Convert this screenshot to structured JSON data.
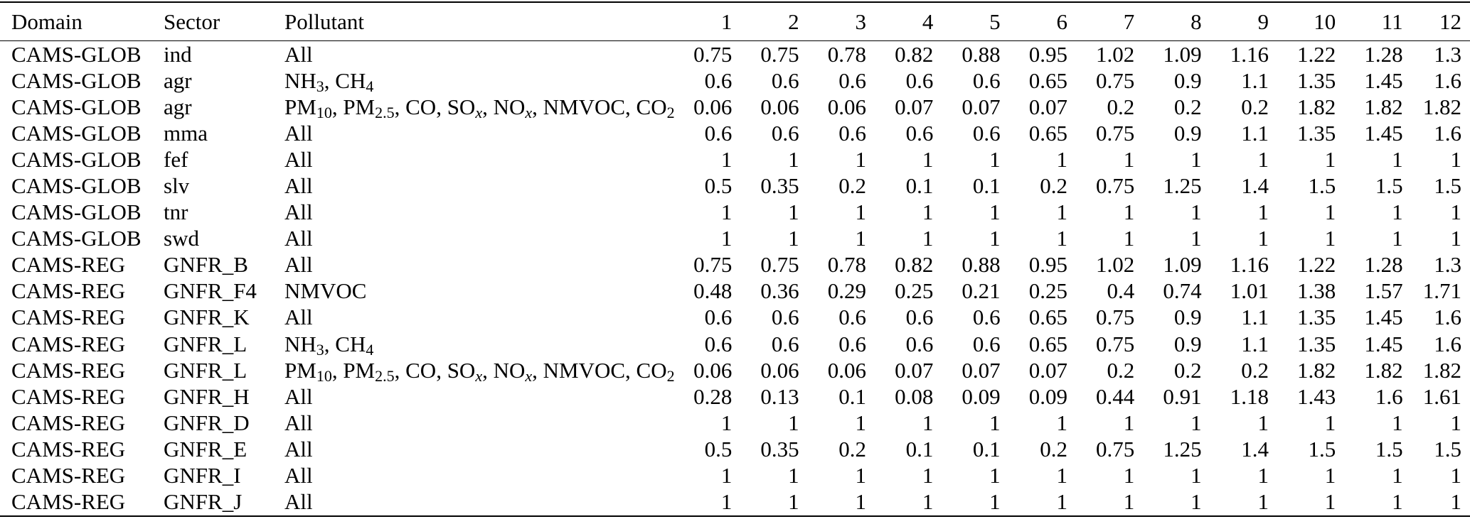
{
  "header": {
    "domain": "Domain",
    "sector": "Sector",
    "pollutant": "Pollutant",
    "months": [
      "1",
      "2",
      "3",
      "4",
      "5",
      "6",
      "7",
      "8",
      "9",
      "10",
      "11",
      "12"
    ]
  },
  "rows": [
    {
      "domain": "CAMS-GLOB",
      "sector": "ind",
      "pollutant": [
        {
          "t": "All"
        }
      ],
      "values": [
        "0.75",
        "0.75",
        "0.78",
        "0.82",
        "0.88",
        "0.95",
        "1.02",
        "1.09",
        "1.16",
        "1.22",
        "1.28",
        "1.3"
      ]
    },
    {
      "domain": "CAMS-GLOB",
      "sector": "agr",
      "pollutant": [
        {
          "t": "NH"
        },
        {
          "s": "3"
        },
        {
          "t": ", CH"
        },
        {
          "s": "4"
        }
      ],
      "values": [
        "0.6",
        "0.6",
        "0.6",
        "0.6",
        "0.6",
        "0.65",
        "0.75",
        "0.9",
        "1.1",
        "1.35",
        "1.45",
        "1.6"
      ]
    },
    {
      "domain": "CAMS-GLOB",
      "sector": "agr",
      "pollutant": [
        {
          "t": "PM"
        },
        {
          "s": "10"
        },
        {
          "t": ", PM"
        },
        {
          "s": "2.5"
        },
        {
          "t": ", CO, SO"
        },
        {
          "s": "x",
          "i": true
        },
        {
          "t": ", NO"
        },
        {
          "s": "x",
          "i": true
        },
        {
          "t": ", NMVOC, CO"
        },
        {
          "s": "2"
        }
      ],
      "values": [
        "0.06",
        "0.06",
        "0.06",
        "0.07",
        "0.07",
        "0.07",
        "0.2",
        "0.2",
        "0.2",
        "1.82",
        "1.82",
        "1.82"
      ]
    },
    {
      "domain": "CAMS-GLOB",
      "sector": "mma",
      "pollutant": [
        {
          "t": "All"
        }
      ],
      "values": [
        "0.6",
        "0.6",
        "0.6",
        "0.6",
        "0.6",
        "0.65",
        "0.75",
        "0.9",
        "1.1",
        "1.35",
        "1.45",
        "1.6"
      ]
    },
    {
      "domain": "CAMS-GLOB",
      "sector": "fef",
      "pollutant": [
        {
          "t": "All"
        }
      ],
      "values": [
        "1",
        "1",
        "1",
        "1",
        "1",
        "1",
        "1",
        "1",
        "1",
        "1",
        "1",
        "1"
      ]
    },
    {
      "domain": "CAMS-GLOB",
      "sector": "slv",
      "pollutant": [
        {
          "t": "All"
        }
      ],
      "values": [
        "0.5",
        "0.35",
        "0.2",
        "0.1",
        "0.1",
        "0.2",
        "0.75",
        "1.25",
        "1.4",
        "1.5",
        "1.5",
        "1.5"
      ]
    },
    {
      "domain": "CAMS-GLOB",
      "sector": "tnr",
      "pollutant": [
        {
          "t": "All"
        }
      ],
      "values": [
        "1",
        "1",
        "1",
        "1",
        "1",
        "1",
        "1",
        "1",
        "1",
        "1",
        "1",
        "1"
      ]
    },
    {
      "domain": "CAMS-GLOB",
      "sector": "swd",
      "pollutant": [
        {
          "t": "All"
        }
      ],
      "values": [
        "1",
        "1",
        "1",
        "1",
        "1",
        "1",
        "1",
        "1",
        "1",
        "1",
        "1",
        "1"
      ]
    },
    {
      "domain": "CAMS-REG",
      "sector": "GNFR_B",
      "pollutant": [
        {
          "t": "All"
        }
      ],
      "values": [
        "0.75",
        "0.75",
        "0.78",
        "0.82",
        "0.88",
        "0.95",
        "1.02",
        "1.09",
        "1.16",
        "1.22",
        "1.28",
        "1.3"
      ]
    },
    {
      "domain": "CAMS-REG",
      "sector": "GNFR_F4",
      "pollutant": [
        {
          "t": "NMVOC"
        }
      ],
      "values": [
        "0.48",
        "0.36",
        "0.29",
        "0.25",
        "0.21",
        "0.25",
        "0.4",
        "0.74",
        "1.01",
        "1.38",
        "1.57",
        "1.71"
      ]
    },
    {
      "domain": "CAMS-REG",
      "sector": "GNFR_K",
      "pollutant": [
        {
          "t": "All"
        }
      ],
      "values": [
        "0.6",
        "0.6",
        "0.6",
        "0.6",
        "0.6",
        "0.65",
        "0.75",
        "0.9",
        "1.1",
        "1.35",
        "1.45",
        "1.6"
      ]
    },
    {
      "domain": "CAMS-REG",
      "sector": "GNFR_L",
      "pollutant": [
        {
          "t": "NH"
        },
        {
          "s": "3"
        },
        {
          "t": ", CH"
        },
        {
          "s": "4"
        }
      ],
      "values": [
        "0.6",
        "0.6",
        "0.6",
        "0.6",
        "0.6",
        "0.65",
        "0.75",
        "0.9",
        "1.1",
        "1.35",
        "1.45",
        "1.6"
      ]
    },
    {
      "domain": "CAMS-REG",
      "sector": "GNFR_L",
      "pollutant": [
        {
          "t": "PM"
        },
        {
          "s": "10"
        },
        {
          "t": ", PM"
        },
        {
          "s": "2.5"
        },
        {
          "t": ", CO, SO"
        },
        {
          "s": "x",
          "i": true
        },
        {
          "t": ", NO"
        },
        {
          "s": "x",
          "i": true
        },
        {
          "t": ", NMVOC, CO"
        },
        {
          "s": "2"
        }
      ],
      "values": [
        "0.06",
        "0.06",
        "0.06",
        "0.07",
        "0.07",
        "0.07",
        "0.2",
        "0.2",
        "0.2",
        "1.82",
        "1.82",
        "1.82"
      ]
    },
    {
      "domain": "CAMS-REG",
      "sector": "GNFR_H",
      "pollutant": [
        {
          "t": "All"
        }
      ],
      "values": [
        "0.28",
        "0.13",
        "0.1",
        "0.08",
        "0.09",
        "0.09",
        "0.44",
        "0.91",
        "1.18",
        "1.43",
        "1.6",
        "1.61"
      ]
    },
    {
      "domain": "CAMS-REG",
      "sector": "GNFR_D",
      "pollutant": [
        {
          "t": "All"
        }
      ],
      "values": [
        "1",
        "1",
        "1",
        "1",
        "1",
        "1",
        "1",
        "1",
        "1",
        "1",
        "1",
        "1"
      ]
    },
    {
      "domain": "CAMS-REG",
      "sector": "GNFR_E",
      "pollutant": [
        {
          "t": "All"
        }
      ],
      "values": [
        "0.5",
        "0.35",
        "0.2",
        "0.1",
        "0.1",
        "0.2",
        "0.75",
        "1.25",
        "1.4",
        "1.5",
        "1.5",
        "1.5"
      ]
    },
    {
      "domain": "CAMS-REG",
      "sector": "GNFR_I",
      "pollutant": [
        {
          "t": "All"
        }
      ],
      "values": [
        "1",
        "1",
        "1",
        "1",
        "1",
        "1",
        "1",
        "1",
        "1",
        "1",
        "1",
        "1"
      ]
    },
    {
      "domain": "CAMS-REG",
      "sector": "GNFR_J",
      "pollutant": [
        {
          "t": "All"
        }
      ],
      "values": [
        "1",
        "1",
        "1",
        "1",
        "1",
        "1",
        "1",
        "1",
        "1",
        "1",
        "1",
        "1"
      ]
    }
  ]
}
